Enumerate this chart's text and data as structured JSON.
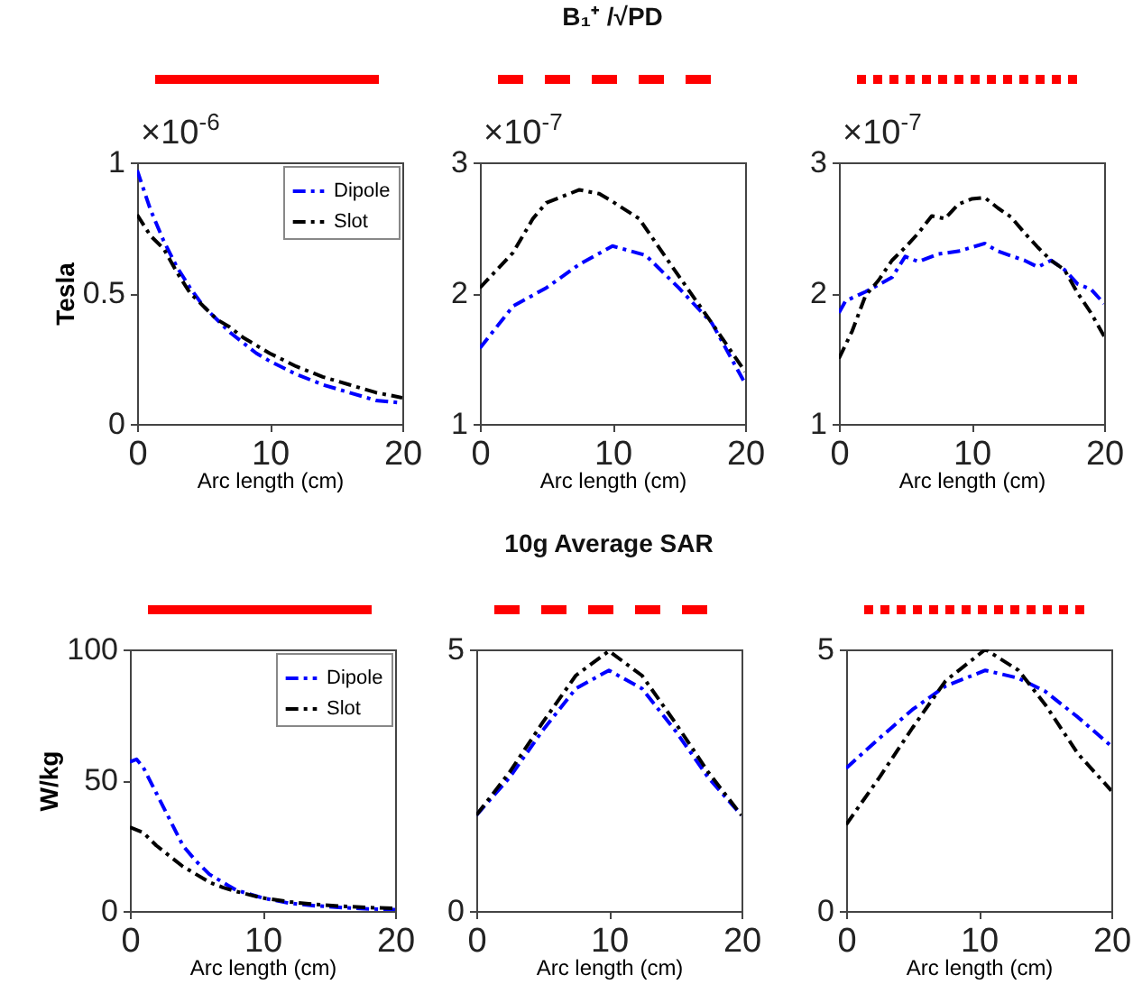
{
  "chart_data": [
    {
      "type": "line",
      "ylabel": "Tesla",
      "xlabel": "Arc length (cm)",
      "annotations": [
        "×10$^{-6}$"
      ],
      "xlim": [
        0,
        20
      ],
      "xticks": [
        0,
        10,
        20
      ],
      "ylim": [
        0,
        1
      ],
      "yticks": [
        0,
        0.5,
        1
      ],
      "grid": false,
      "legend": "top right",
      "line_style": "dashed",
      "series": [
        {
          "name": "Dipole",
          "color": "#0000ff",
          "x": [
            0,
            1,
            2,
            3,
            4,
            5,
            6,
            7,
            8,
            9,
            10,
            12,
            14,
            16,
            18,
            20
          ],
          "values": [
            0.97,
            0.82,
            0.7,
            0.6,
            0.52,
            0.45,
            0.4,
            0.35,
            0.31,
            0.27,
            0.24,
            0.19,
            0.15,
            0.12,
            0.09,
            0.08
          ]
        },
        {
          "name": "Slot",
          "color": "#000000",
          "x": [
            0,
            1,
            2,
            3,
            4,
            5,
            6,
            7,
            8,
            9,
            10,
            12,
            14,
            16,
            18,
            20
          ],
          "values": [
            0.8,
            0.72,
            0.67,
            0.58,
            0.5,
            0.45,
            0.4,
            0.37,
            0.33,
            0.3,
            0.27,
            0.22,
            0.18,
            0.15,
            0.12,
            0.1
          ]
        }
      ]
    },
    {
      "type": "line",
      "title": "B₁⁺ /√PD",
      "xlabel": "Arc length (cm)",
      "annotations": [
        "×10$^{-7}$"
      ],
      "xlim": [
        0,
        20
      ],
      "xticks": [
        0,
        10,
        20
      ],
      "ylim": [
        1,
        3
      ],
      "yticks": [
        1,
        2,
        3
      ],
      "grid": false,
      "line_style": "dashed",
      "series": [
        {
          "color": "#0000ff",
          "x": [
            0,
            2.5,
            5,
            7.5,
            10,
            12.5,
            15,
            17.5,
            20
          ],
          "values": [
            1.58,
            1.9,
            2.04,
            2.22,
            2.36,
            2.29,
            2.04,
            1.77,
            1.31
          ]
        },
        {
          "color": "#000000",
          "x": [
            0,
            2.5,
            4,
            5,
            7.5,
            9,
            10,
            12,
            15,
            17.5,
            20
          ],
          "values": [
            2.04,
            2.31,
            2.57,
            2.69,
            2.79,
            2.76,
            2.7,
            2.57,
            2.13,
            1.77,
            1.4
          ]
        }
      ]
    },
    {
      "type": "line",
      "xlabel": "Arc length (cm)",
      "annotations": [
        "×10$^{-7}$"
      ],
      "xlim": [
        0,
        20
      ],
      "xticks": [
        0,
        10,
        20
      ],
      "ylim": [
        1,
        3
      ],
      "yticks": [
        1,
        2,
        3
      ],
      "grid": false,
      "line_style": "dashed",
      "series": [
        {
          "color": "#0000ff",
          "x": [
            0,
            0.5,
            2,
            4,
            5,
            6,
            7.5,
            9,
            10,
            11,
            12,
            14,
            15,
            16,
            17,
            18,
            19,
            20
          ],
          "values": [
            1.85,
            1.94,
            2.01,
            2.12,
            2.28,
            2.24,
            2.3,
            2.32,
            2.35,
            2.38,
            2.32,
            2.25,
            2.2,
            2.25,
            2.18,
            2.07,
            2.03,
            1.92
          ]
        },
        {
          "color": "#000000",
          "x": [
            0,
            1,
            2,
            3,
            4,
            5,
            6,
            7,
            8,
            9,
            10,
            11,
            12,
            13,
            14,
            15,
            16,
            17,
            18,
            19,
            20
          ],
          "values": [
            1.5,
            1.71,
            1.98,
            2.1,
            2.25,
            2.35,
            2.46,
            2.59,
            2.57,
            2.68,
            2.72,
            2.73,
            2.65,
            2.58,
            2.46,
            2.35,
            2.25,
            2.18,
            2.0,
            1.85,
            1.67
          ]
        }
      ]
    },
    {
      "type": "line",
      "ylabel": "W/kg",
      "xlabel": "Arc length (cm)",
      "xlim": [
        0,
        20
      ],
      "xticks": [
        0,
        10,
        20
      ],
      "ylim": [
        0,
        100
      ],
      "yticks": [
        0,
        50,
        100
      ],
      "grid": false,
      "legend": "top right",
      "line_style": "dashed",
      "series": [
        {
          "name": "Dipole",
          "color": "#0000ff",
          "x": [
            0,
            0.5,
            1,
            2,
            3,
            4,
            5,
            6,
            7,
            8,
            10,
            12,
            14,
            16,
            18,
            20
          ],
          "values": [
            57,
            58,
            55,
            45,
            35,
            25,
            19,
            14,
            11,
            8,
            5,
            3,
            2,
            1.3,
            0.8,
            0.5
          ]
        },
        {
          "name": "Slot",
          "color": "#000000",
          "x": [
            0,
            1,
            2,
            3,
            4,
            5,
            6,
            7,
            8,
            10,
            12,
            14,
            16,
            18,
            20
          ],
          "values": [
            32,
            30,
            25,
            21,
            17,
            14,
            11,
            9,
            7.5,
            5,
            3.5,
            2.5,
            1.8,
            1.3,
            1
          ]
        }
      ]
    },
    {
      "type": "line",
      "title": "10g Average SAR",
      "xlabel": "Arc length (cm)",
      "xlim": [
        0,
        20
      ],
      "xticks": [
        0,
        10,
        20
      ],
      "ylim": [
        0,
        5
      ],
      "yticks": [
        0,
        5
      ],
      "grid": false,
      "line_style": "dashed",
      "series": [
        {
          "color": "#0000ff",
          "x": [
            0,
            2.5,
            5,
            7.5,
            10,
            12.5,
            15,
            17.5,
            20
          ],
          "values": [
            1.83,
            2.55,
            3.45,
            4.25,
            4.6,
            4.25,
            3.45,
            2.55,
            1.83
          ]
        },
        {
          "color": "#000000",
          "x": [
            0,
            2.5,
            5,
            7.5,
            10,
            12.5,
            15,
            17.5,
            20
          ],
          "values": [
            1.83,
            2.65,
            3.6,
            4.5,
            4.97,
            4.5,
            3.6,
            2.65,
            1.83
          ]
        }
      ]
    },
    {
      "type": "line",
      "xlabel": "Arc length (cm)",
      "xlim": [
        0,
        20
      ],
      "xticks": [
        0,
        10,
        20
      ],
      "ylim": [
        0,
        5
      ],
      "yticks": [
        0,
        5
      ],
      "grid": false,
      "line_style": "dashed",
      "series": [
        {
          "color": "#0000ff",
          "x": [
            0,
            2.5,
            5,
            7.5,
            10.5,
            13,
            15,
            17.5,
            20
          ],
          "values": [
            2.73,
            3.3,
            3.85,
            4.3,
            4.6,
            4.45,
            4.2,
            3.7,
            3.15
          ]
        },
        {
          "color": "#000000",
          "x": [
            0,
            2.5,
            5,
            7.5,
            10.5,
            13,
            15,
            17.5,
            20
          ],
          "values": [
            1.65,
            2.55,
            3.5,
            4.4,
            5.0,
            4.6,
            3.95,
            3.0,
            2.3
          ]
        }
      ]
    }
  ]
}
